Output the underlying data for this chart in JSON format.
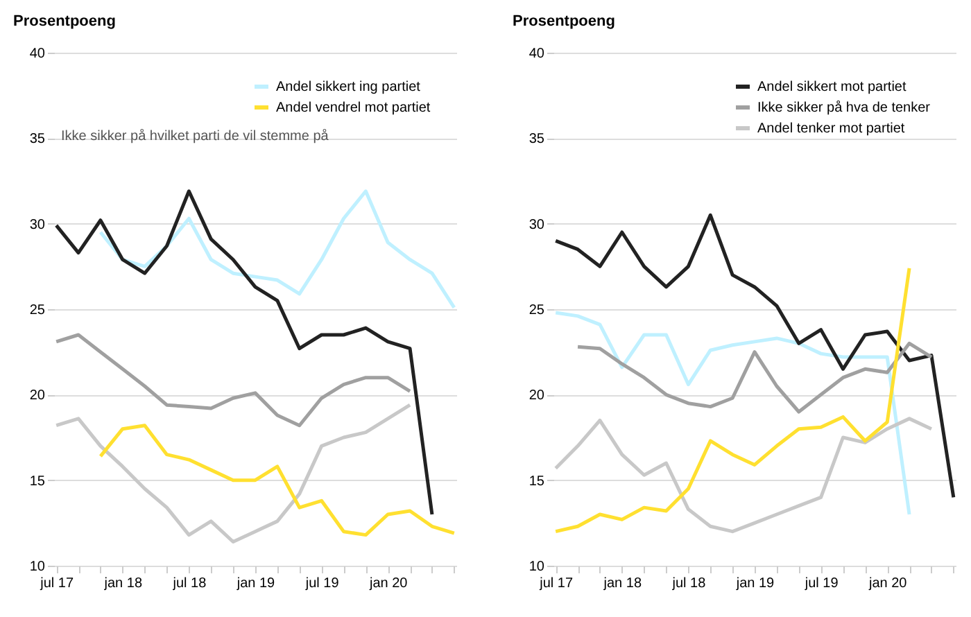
{
  "chart_data": [
    {
      "type": "line",
      "ylabel": "Prosentpoeng",
      "categories": [
        "jul 17",
        null,
        null,
        "jan 18",
        null,
        null,
        "jul 18",
        null,
        null,
        "jan 19",
        null,
        null,
        "jul 19",
        null,
        null,
        "jan 20",
        null,
        null,
        null
      ],
      "series": [
        {
          "name": "Andel sikkert ing partiet",
          "color": "#bff0ff",
          "values": [
            null,
            null,
            29.5,
            27.9,
            27.5,
            28.7,
            30.3,
            27.9,
            27.1,
            26.9,
            26.7,
            25.9,
            27.9,
            30.3,
            31.9,
            28.9,
            27.9,
            27.1,
            25.1
          ]
        },
        {
          "color": "#222222",
          "values": [
            29.9,
            28.3,
            30.2,
            27.9,
            27.1,
            28.7,
            31.9,
            29.1,
            27.9,
            26.3,
            25.5,
            22.7,
            23.5,
            23.5,
            23.9,
            23.1,
            22.7,
            13,
            null
          ]
        },
        {
          "color": "#a0a0a0",
          "values": [
            23.1,
            23.5,
            22.5,
            21.5,
            20.5,
            19.4,
            19.3,
            19.2,
            19.8,
            20.1,
            18.8,
            18.2,
            19.8,
            20.6,
            21,
            21,
            20.2,
            null,
            null
          ]
        },
        {
          "color": "#c8c8c8",
          "values": [
            18.2,
            18.6,
            17,
            15.8,
            14.5,
            13.4,
            11.8,
            12.6,
            11.4,
            12,
            12.6,
            14.2,
            17,
            17.5,
            17.8,
            18.6,
            19.4,
            null,
            null
          ]
        },
        {
          "name": "Andel vendrel mot partiet",
          "color": "#ffe030",
          "values": [
            null,
            null,
            16.4,
            18,
            18.2,
            16.5,
            16.2,
            15.6,
            15,
            15,
            15.8,
            13.4,
            13.8,
            12,
            11.8,
            13,
            13.2,
            12.3,
            11.9
          ]
        }
      ],
      "ylim": [
        10,
        40
      ],
      "yticks": [
        10,
        15,
        20,
        25,
        30,
        35,
        40
      ],
      "grid": "y",
      "legend": "top right",
      "line_style": "solid",
      "annotations": [
        "Ikke sikker på hvilket parti de vil stemme på"
      ]
    },
    {
      "type": "line",
      "ylabel": "Prosentpoeng",
      "categories": [
        "jul 17",
        null,
        null,
        "jan 18",
        null,
        null,
        "jul 18",
        null,
        null,
        "jan 19",
        null,
        null,
        "jul 19",
        null,
        null,
        "jan 20",
        null,
        null,
        null
      ],
      "series": [
        {
          "color": "#bff0ff",
          "values": [
            24.8,
            24.6,
            24.1,
            21.6,
            23.5,
            23.5,
            20.6,
            22.6,
            22.9,
            23.1,
            23.3,
            23,
            22.4,
            22.2,
            22.2,
            22.2,
            13,
            null,
            null
          ]
        },
        {
          "name": "Andel sikkert mot partiet",
          "color": "#222222",
          "values": [
            29,
            28.5,
            27.5,
            29.5,
            27.5,
            26.3,
            27.5,
            30.5,
            27,
            26.3,
            25.2,
            23,
            23.8,
            21.5,
            23.5,
            23.7,
            22,
            22.3,
            14
          ]
        },
        {
          "name": "Ikke sikker på hva de tenker",
          "color": "#a0a0a0",
          "values": [
            null,
            22.8,
            22.7,
            21.8,
            21,
            20,
            19.5,
            19.3,
            19.8,
            22.5,
            20.5,
            19,
            20,
            21,
            21.5,
            21.3,
            23,
            22.2,
            null
          ]
        },
        {
          "name": "Andel tenker mot partiet",
          "color": "#c8c8c8",
          "values": [
            15.7,
            17,
            18.5,
            16.5,
            15.3,
            16,
            13.3,
            12.3,
            12,
            12.5,
            13,
            13.5,
            14,
            17.5,
            17.2,
            18,
            18.6,
            18,
            null
          ]
        },
        {
          "color": "#ffe030",
          "values": [
            12,
            12.3,
            13,
            12.7,
            13.4,
            13.2,
            14.5,
            17.3,
            16.5,
            15.9,
            17,
            18,
            18.1,
            18.7,
            17.3,
            18.4,
            27.4,
            null,
            null
          ]
        }
      ],
      "ylim": [
        10,
        40
      ],
      "yticks": [
        10,
        15,
        20,
        25,
        30,
        35,
        40
      ],
      "grid": "y",
      "legend": "top right",
      "line_style": "solid"
    }
  ]
}
